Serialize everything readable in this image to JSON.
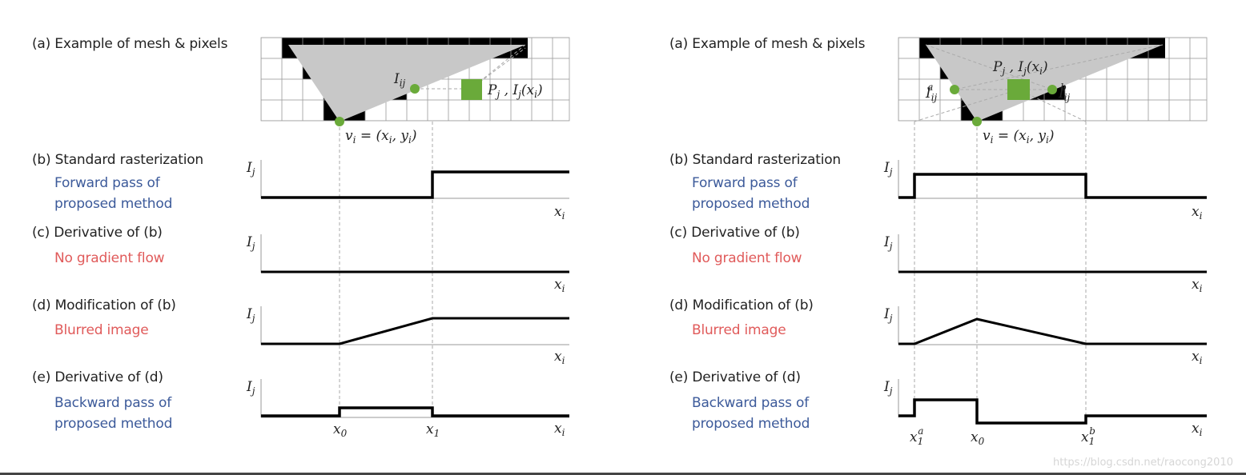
{
  "left": {
    "a_label": "(a) Example of mesh & pixels",
    "b_label": "(b) Standard rasterization",
    "b_sub1": "Forward pass of",
    "b_sub2": "proposed method",
    "c_label": "(c) Derivative of (b)",
    "c_sub": "No gradient flow",
    "d_label": "(d) Modification of (b)",
    "d_sub": "Blurred image",
    "e_label": "(e) Derivative of (d)",
    "e_sub1": "Backward pass of",
    "e_sub2": "proposed method",
    "mesh_Iij": "I",
    "mesh_Iij_sub": "ij",
    "mesh_Pj": "P",
    "mesh_Pj_text": "j , I",
    "mesh_Pj_arg": "j(x",
    "mesh_vi": "v",
    "mesh_vi_eq": "i = (x",
    "axis_I": "I",
    "axis_I_sub": "j",
    "axis_x": "x",
    "axis_x_sub": "i",
    "tick_x0": "x",
    "tick_x0_sub": "0",
    "tick_x1": "x",
    "tick_x1_sub": "1"
  },
  "right": {
    "a_label": "(a) Example of mesh & pixels",
    "b_label": "(b) Standard rasterization",
    "b_sub1": "Forward pass of",
    "b_sub2": "proposed method",
    "c_label": "(c) Derivative of (b)",
    "c_sub": "No gradient flow",
    "d_label": "(d) Modification of (b)",
    "d_sub": "Blurred image",
    "e_label": "(e) Derivative of (d)",
    "e_sub1": "Backward pass of",
    "e_sub2": "proposed method",
    "tick_x1a": "x",
    "tick_x1a_sub": "1",
    "tick_x1a_sup": "a",
    "tick_x0": "x",
    "tick_x0_sub": "0",
    "tick_x1b": "x",
    "tick_x1b_sub": "1",
    "tick_x1b_sup": "b"
  },
  "watermark": "https://blog.csdn.net/raocong2010",
  "colors": {
    "triangle": "#c8c8c8",
    "pixel_green": "#6aaa3a",
    "vertex_green": "#6aaa3a",
    "blue_text": "#3c5a9a",
    "red_text": "#e05a5a"
  }
}
